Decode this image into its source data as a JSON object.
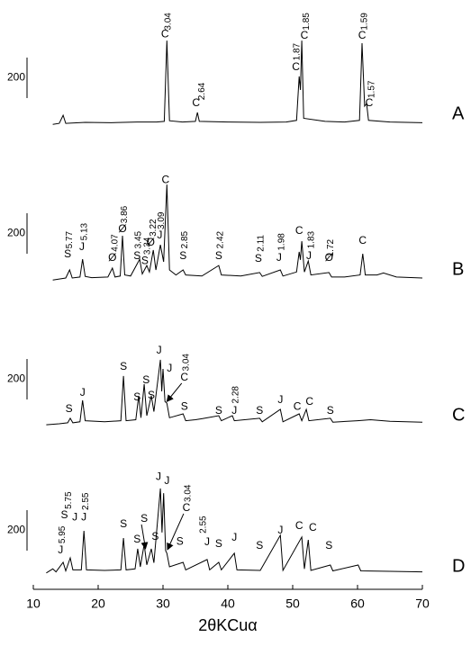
{
  "chart_data": [
    {
      "type": "line",
      "label": "A",
      "color": "#000000",
      "xlim": [
        10,
        70
      ],
      "ylim": [
        0,
        600
      ],
      "scale_bar": 200,
      "x": [
        13,
        14,
        14.6,
        15,
        18,
        22,
        26,
        29,
        30.2,
        30.6,
        31,
        33,
        35,
        35.3,
        35.6,
        40,
        45,
        49,
        50.6,
        51.0,
        51.2,
        51.4,
        51.7,
        55,
        58,
        60.3,
        60.7,
        61.1,
        61.4,
        61.7,
        65,
        70
      ],
      "values": [
        30,
        35,
        75,
        35,
        40,
        38,
        42,
        42,
        45,
        444,
        48,
        42,
        45,
        89,
        45,
        42,
        40,
        42,
        50,
        267,
        200,
        444,
        60,
        45,
        42,
        50,
        431,
        120,
        133,
        50,
        42,
        38
      ],
      "annotations": [
        {
          "text": "C",
          "x": 30.3,
          "y": 475
        },
        {
          "text": "3.04",
          "x": 30.8,
          "y": 495,
          "rotated": true
        },
        {
          "text": "C",
          "x": 35.1,
          "y": 133
        },
        {
          "text": "2.64",
          "x": 36.0,
          "y": 150,
          "rotated": true
        },
        {
          "text": "C",
          "x": 50.5,
          "y": 311
        },
        {
          "text": "1.87",
          "x": 50.7,
          "y": 345,
          "rotated": true
        },
        {
          "text": "C",
          "x": 51.8,
          "y": 467
        },
        {
          "text": "1.85",
          "x": 52.1,
          "y": 495,
          "rotated": true
        },
        {
          "text": "C",
          "x": 60.7,
          "y": 467
        },
        {
          "text": "1.59",
          "x": 61.1,
          "y": 495,
          "rotated": true
        },
        {
          "text": "C",
          "x": 61.8,
          "y": 133
        },
        {
          "text": "1.57",
          "x": 62.2,
          "y": 160,
          "rotated": true
        }
      ]
    },
    {
      "type": "line",
      "label": "B",
      "color": "#000000",
      "xlim": [
        10,
        70
      ],
      "ylim": [
        0,
        600
      ],
      "scale_bar": 200,
      "x": [
        13,
        14,
        15,
        15.6,
        16,
        17.2,
        17.6,
        18,
        19,
        21.5,
        22.2,
        22.6,
        23.4,
        23.75,
        24.1,
        25,
        26.4,
        26.8,
        27.5,
        27.9,
        28.5,
        28.9,
        29.6,
        30.1,
        30.6,
        31,
        32,
        33.1,
        33.5,
        36,
        38.6,
        39,
        42,
        44.9,
        45.3,
        48.1,
        48.5,
        50.6,
        51.0,
        51.2,
        51.4,
        51.8,
        52.4,
        52.8,
        55.6,
        56,
        58,
        60.4,
        60.8,
        61.2,
        63,
        64,
        66,
        70
      ],
      "values": [
        30,
        35,
        40,
        80,
        40,
        45,
        133,
        48,
        42,
        45,
        89,
        45,
        50,
        249,
        55,
        50,
        133,
        60,
        102,
        70,
        178,
        80,
        204,
        120,
        502,
        80,
        55,
        80,
        55,
        50,
        102,
        55,
        50,
        67,
        48,
        80,
        50,
        70,
        169,
        130,
        222,
        70,
        124,
        55,
        67,
        45,
        45,
        55,
        160,
        55,
        55,
        65,
        45,
        40
      ],
      "annotations": [
        {
          "text": "S",
          "x": 15.3,
          "y": 156
        },
        {
          "text": "5.77",
          "x": 15.6,
          "y": 185,
          "rotated": true
        },
        {
          "text": "J",
          "x": 17.5,
          "y": 191
        },
        {
          "text": "5.13",
          "x": 17.9,
          "y": 225,
          "rotated": true
        },
        {
          "text": "Ø",
          "x": 22.2,
          "y": 138
        },
        {
          "text": "4.07",
          "x": 22.6,
          "y": 170,
          "rotated": true
        },
        {
          "text": "Ø",
          "x": 23.75,
          "y": 280
        },
        {
          "text": "3.86",
          "x": 24.1,
          "y": 310,
          "rotated": true
        },
        {
          "text": "S",
          "x": 26.0,
          "y": 147
        },
        {
          "text": "3.45",
          "x": 26.2,
          "y": 185,
          "rotated": true
        },
        {
          "text": "S",
          "x": 27.2,
          "y": 124
        },
        {
          "text": "3.34",
          "x": 27.6,
          "y": 155,
          "rotated": true
        },
        {
          "text": "Ø",
          "x": 28.1,
          "y": 213
        },
        {
          "text": "3.22",
          "x": 28.5,
          "y": 245,
          "rotated": true
        },
        {
          "text": "J",
          "x": 29.5,
          "y": 249
        },
        {
          "text": "3.09",
          "x": 29.8,
          "y": 280,
          "rotated": true
        },
        {
          "text": "C",
          "x": 30.4,
          "y": 524
        },
        {
          "text": "S",
          "x": 33.1,
          "y": 147
        },
        {
          "text": "2.85",
          "x": 33.4,
          "y": 185,
          "rotated": true
        },
        {
          "text": "S",
          "x": 38.6,
          "y": 147
        },
        {
          "text": "2.42",
          "x": 38.9,
          "y": 185,
          "rotated": true
        },
        {
          "text": "S",
          "x": 44.7,
          "y": 133
        },
        {
          "text": "2.11",
          "x": 45.1,
          "y": 170,
          "rotated": true
        },
        {
          "text": "J",
          "x": 47.9,
          "y": 138
        },
        {
          "text": "1.98",
          "x": 48.3,
          "y": 175,
          "rotated": true
        },
        {
          "text": "C",
          "x": 51.0,
          "y": 271
        },
        {
          "text": "J",
          "x": 52.5,
          "y": 147
        },
        {
          "text": "1.83",
          "x": 52.9,
          "y": 185,
          "rotated": true
        },
        {
          "text": "Ø",
          "x": 55.6,
          "y": 138
        },
        {
          "text": "1.72",
          "x": 55.9,
          "y": 145,
          "rotated": true
        },
        {
          "text": "C",
          "x": 60.8,
          "y": 222
        }
      ]
    },
    {
      "type": "line",
      "label": "C",
      "color": "#000000",
      "xlim": [
        10,
        70
      ],
      "ylim": [
        0,
        600
      ],
      "scale_bar": 200,
      "x": [
        12,
        14,
        15.3,
        15.7,
        16.1,
        17.2,
        17.6,
        18,
        21,
        23.5,
        23.9,
        24.3,
        25.8,
        26.25,
        26.6,
        27.1,
        27.5,
        28.2,
        28.6,
        29.6,
        29.8,
        30.0,
        30.3,
        30.6,
        31,
        33.1,
        33.5,
        35,
        36,
        38.6,
        39,
        40.7,
        41,
        44.9,
        45.3,
        48.1,
        48.5,
        51.0,
        51.4,
        52.1,
        52.5,
        55.8,
        56.2,
        60,
        62,
        65,
        70
      ],
      "values": [
        35,
        40,
        45,
        67,
        45,
        50,
        156,
        55,
        50,
        55,
        276,
        55,
        60,
        178,
        70,
        236,
        80,
        178,
        100,
        356,
        200,
        311,
        150,
        142,
        70,
        89,
        55,
        60,
        65,
        80,
        55,
        80,
        55,
        67,
        50,
        111,
        50,
        89,
        55,
        111,
        55,
        67,
        48,
        55,
        60,
        52,
        48
      ],
      "annotations": [
        {
          "text": "S",
          "x": 15.5,
          "y": 111
        },
        {
          "text": "J",
          "x": 17.6,
          "y": 191
        },
        {
          "text": "S",
          "x": 23.9,
          "y": 320
        },
        {
          "text": "S",
          "x": 26.0,
          "y": 169
        },
        {
          "text": "S",
          "x": 27.4,
          "y": 253
        },
        {
          "text": "S",
          "x": 28.2,
          "y": 178
        },
        {
          "text": "J",
          "x": 29.4,
          "y": 400
        },
        {
          "text": "J",
          "x": 31.0,
          "y": 311
        },
        {
          "text": "C",
          "x": 33.3,
          "y": 267,
          "arrow": [
            30.6,
            150
          ]
        },
        {
          "text": "3.04",
          "x": 33.6,
          "y": 300,
          "rotated": true
        },
        {
          "text": "S",
          "x": 33.3,
          "y": 124
        },
        {
          "text": "S",
          "x": 38.6,
          "y": 102
        },
        {
          "text": "J",
          "x": 41.0,
          "y": 102
        },
        {
          "text": "2.28",
          "x": 41.2,
          "y": 140,
          "rotated": true
        },
        {
          "text": "S",
          "x": 44.9,
          "y": 102
        },
        {
          "text": "J",
          "x": 48.1,
          "y": 156
        },
        {
          "text": "C",
          "x": 50.7,
          "y": 124
        },
        {
          "text": "C",
          "x": 52.6,
          "y": 147
        },
        {
          "text": "S",
          "x": 55.8,
          "y": 102
        }
      ]
    },
    {
      "type": "line",
      "label": "D",
      "color": "#000000",
      "xlim": [
        10,
        70
      ],
      "ylim": [
        0,
        600
      ],
      "scale_bar": 200,
      "x": [
        12,
        13,
        13.5,
        14.6,
        15,
        15.7,
        16.1,
        17.4,
        17.8,
        18.2,
        21,
        23.5,
        23.9,
        24.3,
        25.7,
        26.1,
        26.5,
        27.1,
        27.5,
        28.2,
        28.6,
        29.6,
        29.85,
        30.1,
        30.4,
        30.6,
        31,
        33.1,
        33.5,
        36.8,
        37.2,
        38.6,
        39,
        41.0,
        41.4,
        45,
        48.1,
        48.5,
        51.4,
        51.8,
        52.4,
        52.8,
        55.8,
        56.2,
        60.1,
        60.5,
        65,
        70
      ],
      "values": [
        50,
        70,
        55,
        102,
        60,
        124,
        65,
        65,
        258,
        65,
        62,
        65,
        222,
        65,
        70,
        169,
        80,
        191,
        90,
        169,
        100,
        467,
        250,
        444,
        160,
        147,
        80,
        102,
        65,
        116,
        65,
        102,
        65,
        147,
        65,
        62,
        236,
        62,
        227,
        70,
        213,
        62,
        89,
        60,
        89,
        60,
        58,
        55
      ],
      "xticks": [
        10,
        20,
        30,
        40,
        50,
        60,
        70
      ],
      "xlabel": "2θKCuα",
      "annotations": [
        {
          "text": "J",
          "x": 14.2,
          "y": 160
        },
        {
          "text": "5.95",
          "x": 14.5,
          "y": 195,
          "rotated": true
        },
        {
          "text": "S",
          "x": 14.8,
          "y": 333
        },
        {
          "text": "5.75",
          "x": 15.5,
          "y": 365,
          "rotated": true
        },
        {
          "text": "J",
          "x": 16.4,
          "y": 324
        },
        {
          "text": "J",
          "x": 17.8,
          "y": 324
        },
        {
          "text": "2.55",
          "x": 18.1,
          "y": 360,
          "rotated": true
        },
        {
          "text": "S",
          "x": 23.9,
          "y": 289
        },
        {
          "text": "S",
          "x": 26.0,
          "y": 213
        },
        {
          "text": "S",
          "x": 27.1,
          "y": 316,
          "arrow": [
            27.3,
            170
          ]
        },
        {
          "text": "S",
          "x": 28.8,
          "y": 227
        },
        {
          "text": "J",
          "x": 29.3,
          "y": 524
        },
        {
          "text": "J",
          "x": 30.6,
          "y": 502
        },
        {
          "text": "C",
          "x": 33.6,
          "y": 369,
          "arrow": [
            30.7,
            165
          ]
        },
        {
          "text": "3.04",
          "x": 33.9,
          "y": 400,
          "rotated": true
        },
        {
          "text": "S",
          "x": 32.6,
          "y": 204
        },
        {
          "text": "J",
          "x": 36.8,
          "y": 200
        },
        {
          "text": "2.55",
          "x": 36.2,
          "y": 245,
          "rotated": true
        },
        {
          "text": "S",
          "x": 38.6,
          "y": 191
        },
        {
          "text": "J",
          "x": 41.0,
          "y": 222
        },
        {
          "text": "S",
          "x": 44.9,
          "y": 182
        },
        {
          "text": "J",
          "x": 48.1,
          "y": 258
        },
        {
          "text": "C",
          "x": 51.0,
          "y": 280
        },
        {
          "text": "C",
          "x": 53.1,
          "y": 271
        },
        {
          "text": "S",
          "x": 55.6,
          "y": 182
        }
      ]
    }
  ]
}
